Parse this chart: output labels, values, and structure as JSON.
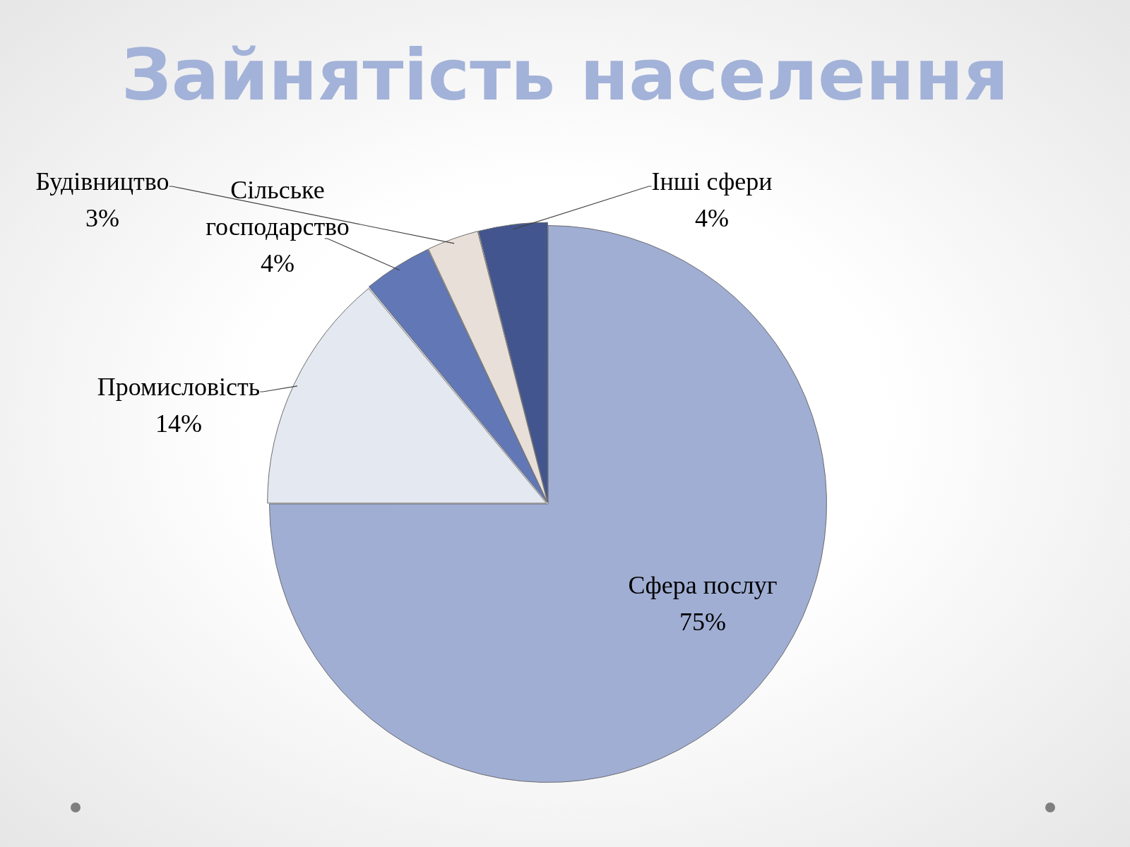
{
  "chart_data": {
    "type": "pie",
    "title": "Зайнятість населення",
    "categories": [
      "Сфера послуг",
      "Промисловість",
      "Сільське господарство",
      "Будівництво",
      "Інші сфери"
    ],
    "values": [
      75,
      14,
      4,
      3,
      4
    ],
    "value_labels": [
      "75%",
      "14%",
      "4%",
      "3%",
      "4%"
    ],
    "colors": [
      "#a0aed4",
      "#e4e8f0",
      "#6277b5",
      "#e8e0d8",
      "#43558e"
    ]
  }
}
